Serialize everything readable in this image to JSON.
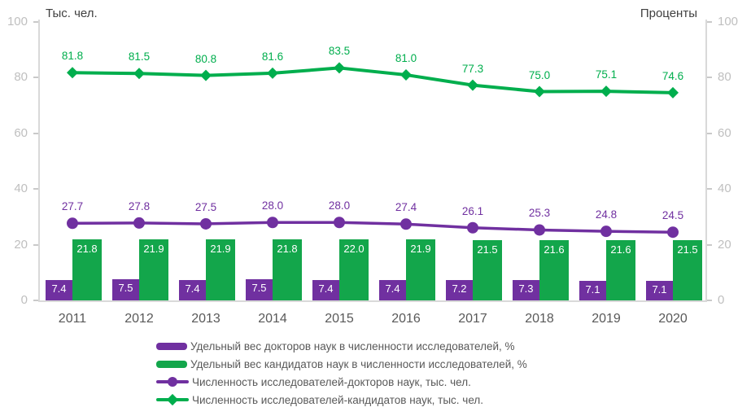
{
  "chart_data": {
    "type": "combo-bar-line",
    "categories": [
      "2011",
      "2012",
      "2013",
      "2014",
      "2015",
      "2016",
      "2017",
      "2018",
      "2019",
      "2020"
    ],
    "series": [
      {
        "name": "Удельный вес докторов наук в численности исследователей, %",
        "type": "bar",
        "axis": "right",
        "color": "#7030A0",
        "values": [
          7.4,
          7.5,
          7.4,
          7.5,
          7.4,
          7.4,
          7.2,
          7.3,
          7.1,
          7.1
        ]
      },
      {
        "name": "Удельный вес кандидатов наук в численности исследователей, %",
        "type": "bar",
        "axis": "right",
        "color": "#13A64B",
        "values": [
          21.8,
          21.9,
          21.9,
          21.8,
          22.0,
          21.9,
          21.5,
          21.6,
          21.6,
          21.5
        ]
      },
      {
        "name": "Численность исследователей-докторов наук, тыс. чел.",
        "type": "line",
        "marker": "circle",
        "axis": "left",
        "color": "#7030A0",
        "values": [
          27.7,
          27.8,
          27.5,
          28.0,
          28.0,
          27.4,
          26.1,
          25.3,
          24.8,
          24.5
        ]
      },
      {
        "name": "Численность исследователей-кандидатов наук, тыс. чел.",
        "type": "line",
        "marker": "diamond",
        "axis": "left",
        "color": "#00AE4D",
        "values": [
          81.8,
          81.5,
          80.8,
          81.6,
          83.5,
          81.0,
          77.3,
          75.0,
          75.1,
          74.6
        ]
      }
    ],
    "left_axis": {
      "title": "Тыс. чел.",
      "min": 0,
      "max": 100,
      "ticks": [
        0,
        20,
        40,
        60,
        80,
        100
      ]
    },
    "right_axis": {
      "title": "Проценты",
      "min": 0,
      "max": 100,
      "ticks": [
        0,
        20,
        40,
        60,
        80,
        100
      ]
    },
    "grid": false,
    "legend_position": "bottom",
    "value_label_decimals": 1
  },
  "palette": {
    "tick_label": "#BFBFBF",
    "axis_line": "#D9D9D9",
    "year_label": "#595959",
    "legend_text": "#595959",
    "axis_title": "#404040",
    "bar_value_label": "#FFFFFF"
  }
}
